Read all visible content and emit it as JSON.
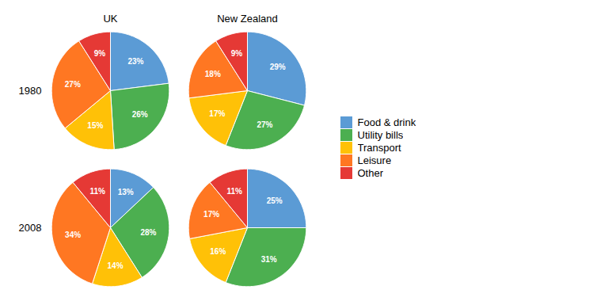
{
  "chart_data": {
    "type": "pie",
    "columns": [
      "UK",
      "New Zealand"
    ],
    "rows": [
      "1980",
      "2008"
    ],
    "categories": [
      "Food & drink",
      "Utility bills",
      "Transport",
      "Leisure",
      "Other"
    ],
    "colors": [
      "#5B9BD5",
      "#4CAF50",
      "#FFC107",
      "#FF7722",
      "#E53935"
    ],
    "pies": [
      {
        "values": [
          23,
          26,
          15,
          27,
          9
        ],
        "value_labels": [
          "23%",
          "26%",
          "15%",
          "27%",
          "9%"
        ]
      },
      {
        "values": [
          29,
          27,
          17,
          18,
          9
        ],
        "value_labels": [
          "29%",
          "27%",
          "17%",
          "18%",
          "9%"
        ]
      },
      {
        "values": [
          13,
          28,
          14,
          34,
          11
        ],
        "value_labels": [
          "13%",
          "28%",
          "14%",
          "34%",
          "11%"
        ]
      },
      {
        "values": [
          25,
          31,
          16,
          17,
          11
        ],
        "value_labels": [
          "25%",
          "31%",
          "16%",
          "17%",
          "11%"
        ]
      }
    ],
    "data_labels": true,
    "legend": "right"
  }
}
